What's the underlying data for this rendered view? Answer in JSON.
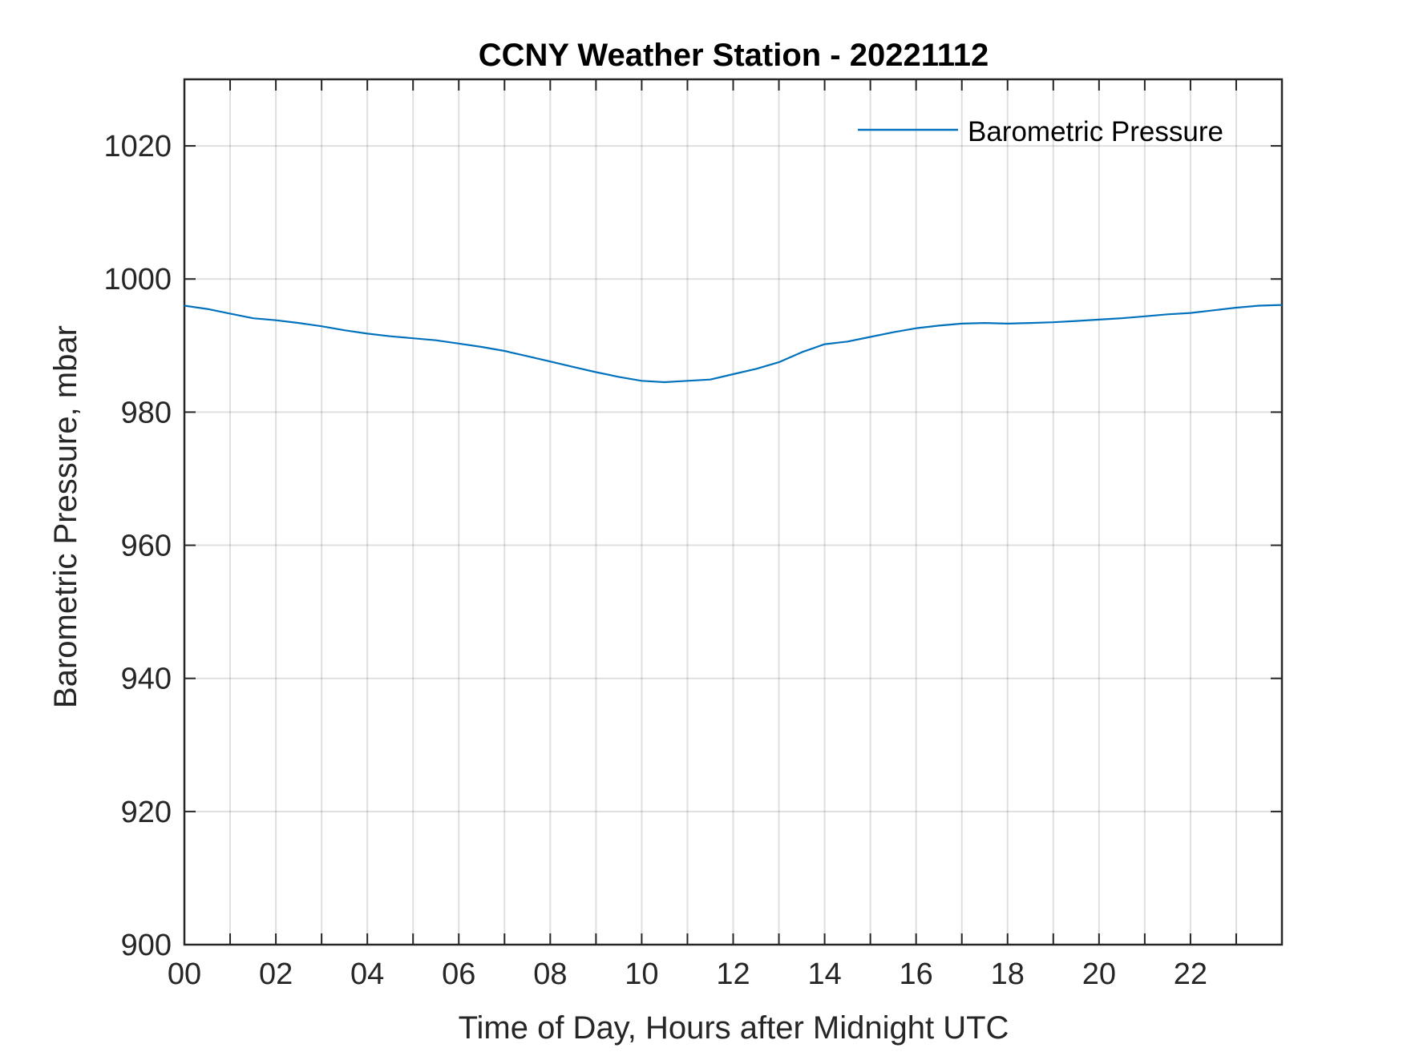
{
  "chart_data": {
    "type": "line",
    "title": "CCNY Weather Station - 20221112",
    "xlabel": "Time of Day, Hours after Midnight UTC",
    "ylabel": "Barometric Pressure, mbar",
    "xlim": [
      0,
      24
    ],
    "ylim": [
      900,
      1030
    ],
    "xticks": [
      0,
      2,
      4,
      6,
      8,
      10,
      12,
      14,
      16,
      18,
      20,
      22
    ],
    "xtick_labels": [
      "00",
      "02",
      "04",
      "06",
      "08",
      "10",
      "12",
      "14",
      "16",
      "18",
      "20",
      "22"
    ],
    "yticks": [
      900,
      920,
      940,
      960,
      980,
      1000,
      1020
    ],
    "ytick_labels": [
      "900",
      "920",
      "940",
      "960",
      "980",
      "1000",
      "1020"
    ],
    "grid": true,
    "legend_position": "top-right",
    "series": [
      {
        "name": "Barometric Pressure",
        "color": "#0072BD",
        "x": [
          0,
          0.5,
          1,
          1.5,
          2,
          2.5,
          3,
          3.5,
          4,
          4.5,
          5,
          5.5,
          6,
          6.5,
          7,
          7.5,
          8,
          8.5,
          9,
          9.5,
          10,
          10.5,
          11,
          11.5,
          12,
          12.5,
          13,
          13.5,
          14,
          14.5,
          15,
          15.5,
          16,
          16.5,
          17,
          17.5,
          18,
          18.5,
          19,
          19.5,
          20,
          20.5,
          21,
          21.5,
          22,
          22.5,
          23,
          23.5,
          24
        ],
        "y": [
          996,
          995.5,
          994.8,
          994.1,
          993.8,
          993.4,
          992.9,
          992.3,
          991.8,
          991.4,
          991.1,
          990.8,
          990.3,
          989.8,
          989.2,
          988.4,
          987.6,
          986.8,
          986,
          985.3,
          984.7,
          984.5,
          984.7,
          984.9,
          985.7,
          986.5,
          987.5,
          989,
          990.2,
          990.6,
          991.3,
          992,
          992.6,
          993,
          993.3,
          993.4,
          993.3,
          993.4,
          993.5,
          993.7,
          993.9,
          994.1,
          994.4,
          994.7,
          994.9,
          995.3,
          995.7,
          996,
          996.1
        ]
      }
    ]
  }
}
